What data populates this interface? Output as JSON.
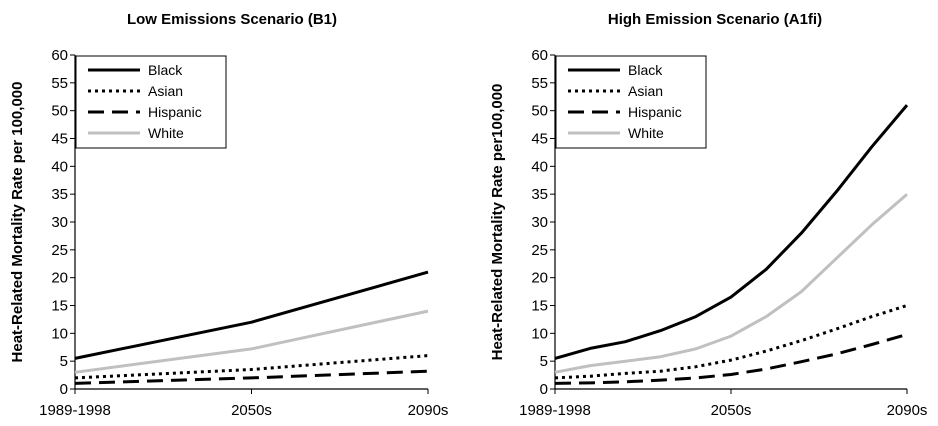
{
  "chart_data": [
    {
      "type": "line",
      "title": "Low Emissions Scenario (B1)",
      "ylabel": "Heat-Related Mortality Rate per 100,000",
      "xlabel": "",
      "x_ticks": [
        "1989-1998",
        "2050s",
        "2090s"
      ],
      "x": [
        0,
        0.5,
        1
      ],
      "ylim": [
        0,
        60
      ],
      "y_ticks": [
        0,
        5,
        10,
        15,
        20,
        25,
        30,
        35,
        40,
        45,
        50,
        55,
        60
      ],
      "grid": false,
      "legend_position": "top-left",
      "series": [
        {
          "name": "Black",
          "values": [
            5.5,
            12,
            21
          ],
          "color": "#000000",
          "style": "solid"
        },
        {
          "name": "Asian",
          "values": [
            2,
            3.5,
            6
          ],
          "color": "#000000",
          "style": "dotted"
        },
        {
          "name": "Hispanic",
          "values": [
            1,
            2,
            3.2
          ],
          "color": "#000000",
          "style": "dashed"
        },
        {
          "name": "White",
          "values": [
            3,
            7.2,
            14
          ],
          "color": "#c0c0c0",
          "style": "solid"
        }
      ]
    },
    {
      "type": "line",
      "title": "High Emission Scenario (A1fi)",
      "ylabel": "Heat-Related Mortality Rate per100,000",
      "xlabel": "",
      "x_ticks": [
        "1989-1998",
        "2050s",
        "2090s"
      ],
      "x": [
        0,
        0.1,
        0.2,
        0.3,
        0.4,
        0.5,
        0.6,
        0.7,
        0.8,
        0.9,
        1
      ],
      "ylim": [
        0,
        60
      ],
      "y_ticks": [
        0,
        5,
        10,
        15,
        20,
        25,
        30,
        35,
        40,
        45,
        50,
        55,
        60
      ],
      "grid": false,
      "legend_position": "top-left",
      "series": [
        {
          "name": "Black",
          "values": [
            5.5,
            7.3,
            8.5,
            10.5,
            13,
            16.5,
            21.5,
            28,
            35.5,
            43.5,
            51
          ],
          "color": "#000000",
          "style": "solid"
        },
        {
          "name": "Asian",
          "values": [
            2,
            2.3,
            2.8,
            3.2,
            4,
            5.2,
            6.8,
            8.7,
            10.8,
            13,
            15
          ],
          "color": "#000000",
          "style": "dotted"
        },
        {
          "name": "Hispanic",
          "values": [
            1,
            1.1,
            1.3,
            1.6,
            2,
            2.6,
            3.6,
            4.9,
            6.3,
            8,
            9.8
          ],
          "color": "#000000",
          "style": "dashed"
        },
        {
          "name": "White",
          "values": [
            3,
            4.2,
            5,
            5.8,
            7.2,
            9.5,
            13,
            17.5,
            23.5,
            29.5,
            35
          ],
          "color": "#c0c0c0",
          "style": "solid"
        }
      ]
    }
  ]
}
